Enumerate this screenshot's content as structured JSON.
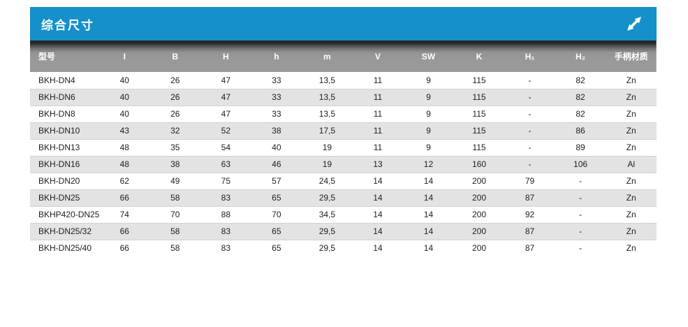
{
  "panel": {
    "title": "综合尺寸",
    "expand_icon": "diagonal-resize-arrow"
  },
  "colors": {
    "titlebar_blue": "#1590c8",
    "header_gray": "#999999",
    "header_shadow_dark": "#222222",
    "row_white": "#ffffff",
    "row_alt_gray": "#e3e3e3",
    "text_dark": "#1d1d1d",
    "text_white": "#ffffff"
  },
  "table": {
    "columns": [
      "型号",
      "I",
      "B",
      "H",
      "h",
      "m",
      "V",
      "SW",
      "K",
      "H₁",
      "H₂",
      "手柄材质"
    ],
    "rows": [
      [
        "BKH-DN4",
        "40",
        "26",
        "47",
        "33",
        "13,5",
        "11",
        "9",
        "115",
        "-",
        "82",
        "Zn"
      ],
      [
        "BKH-DN6",
        "40",
        "26",
        "47",
        "33",
        "13,5",
        "11",
        "9",
        "115",
        "-",
        "82",
        "Zn"
      ],
      [
        "BKH-DN8",
        "40",
        "26",
        "47",
        "33",
        "13,5",
        "11",
        "9",
        "115",
        "-",
        "82",
        "Zn"
      ],
      [
        "BKH-DN10",
        "43",
        "32",
        "52",
        "38",
        "17,5",
        "11",
        "9",
        "115",
        "-",
        "86",
        "Zn"
      ],
      [
        "BKH-DN13",
        "48",
        "35",
        "54",
        "40",
        "19",
        "11",
        "9",
        "115",
        "-",
        "89",
        "Zn"
      ],
      [
        "BKH-DN16",
        "48",
        "38",
        "63",
        "46",
        "19",
        "13",
        "12",
        "160",
        "-",
        "106",
        "Al"
      ],
      [
        "BKH-DN20",
        "62",
        "49",
        "75",
        "57",
        "24,5",
        "14",
        "14",
        "200",
        "79",
        "-",
        "Zn"
      ],
      [
        "BKH-DN25",
        "66",
        "58",
        "83",
        "65",
        "29,5",
        "14",
        "14",
        "200",
        "87",
        "-",
        "Zn"
      ],
      [
        "BKHP420-DN25",
        "74",
        "70",
        "88",
        "70",
        "34,5",
        "14",
        "14",
        "200",
        "92",
        "-",
        "Zn"
      ],
      [
        "BKH-DN25/32",
        "66",
        "58",
        "83",
        "65",
        "29,5",
        "14",
        "14",
        "200",
        "87",
        "-",
        "Zn"
      ],
      [
        "BKH-DN25/40",
        "66",
        "58",
        "83",
        "65",
        "29,5",
        "14",
        "14",
        "200",
        "87",
        "-",
        "Zn"
      ]
    ]
  }
}
